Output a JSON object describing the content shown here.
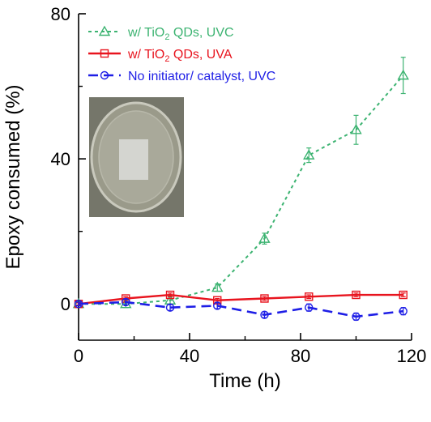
{
  "chart_data": {
    "type": "line",
    "xlabel": "Time (h)",
    "ylabel": "Epoxy consumed (%)",
    "xlim": [
      0,
      120
    ],
    "ylim": [
      -10,
      80
    ],
    "xticks": [
      0,
      40,
      80,
      120
    ],
    "yticks": [
      0,
      40,
      80
    ],
    "x_tick_labels": [
      "0",
      "40",
      "80",
      "120"
    ],
    "y_tick_labels": [
      "0",
      "40",
      "80"
    ],
    "grid": false,
    "legend_position": "top-left",
    "inset": "photo of coated film in a petri dish",
    "series": [
      {
        "name": "w/ TiO2 QDs, UVC",
        "legend_parts": [
          "w/ TiO",
          "2",
          " QDs, UVC"
        ],
        "color": "#3cb371",
        "line_style": "dotted",
        "marker": "triangle",
        "x": [
          0,
          17,
          33,
          50,
          67,
          83,
          100,
          117
        ],
        "y": [
          0,
          0,
          1,
          4.5,
          18,
          41,
          48,
          63
        ],
        "yerr": [
          0.5,
          1,
          1,
          1,
          1.5,
          2,
          4,
          5
        ]
      },
      {
        "name": "w/ TiO2 QDs, UVA",
        "legend_parts": [
          "w/ TiO",
          "2",
          " QDs, UVA"
        ],
        "color": "#e8141e",
        "line_style": "solid",
        "marker": "square",
        "x": [
          0,
          17,
          33,
          50,
          67,
          83,
          100,
          117
        ],
        "y": [
          0,
          1.5,
          2.5,
          1,
          1.5,
          2,
          2.5,
          2.5
        ],
        "yerr": [
          0.3,
          0.5,
          0.5,
          0.5,
          0.5,
          0.5,
          0.5,
          0.5
        ]
      },
      {
        "name": "No initiator/ catalyst, UVC",
        "legend_parts": [
          "No initiator/ catalyst, UVC"
        ],
        "color": "#1e1ee6",
        "line_style": "dashed",
        "marker": "circle",
        "x": [
          0,
          17,
          33,
          50,
          67,
          83,
          100,
          117
        ],
        "y": [
          0,
          0.5,
          -1,
          -0.5,
          -3,
          -1,
          -3.5,
          -2
        ],
        "yerr": [
          0.5,
          0.8,
          0.8,
          0.8,
          0.8,
          1,
          1,
          1
        ]
      }
    ]
  }
}
